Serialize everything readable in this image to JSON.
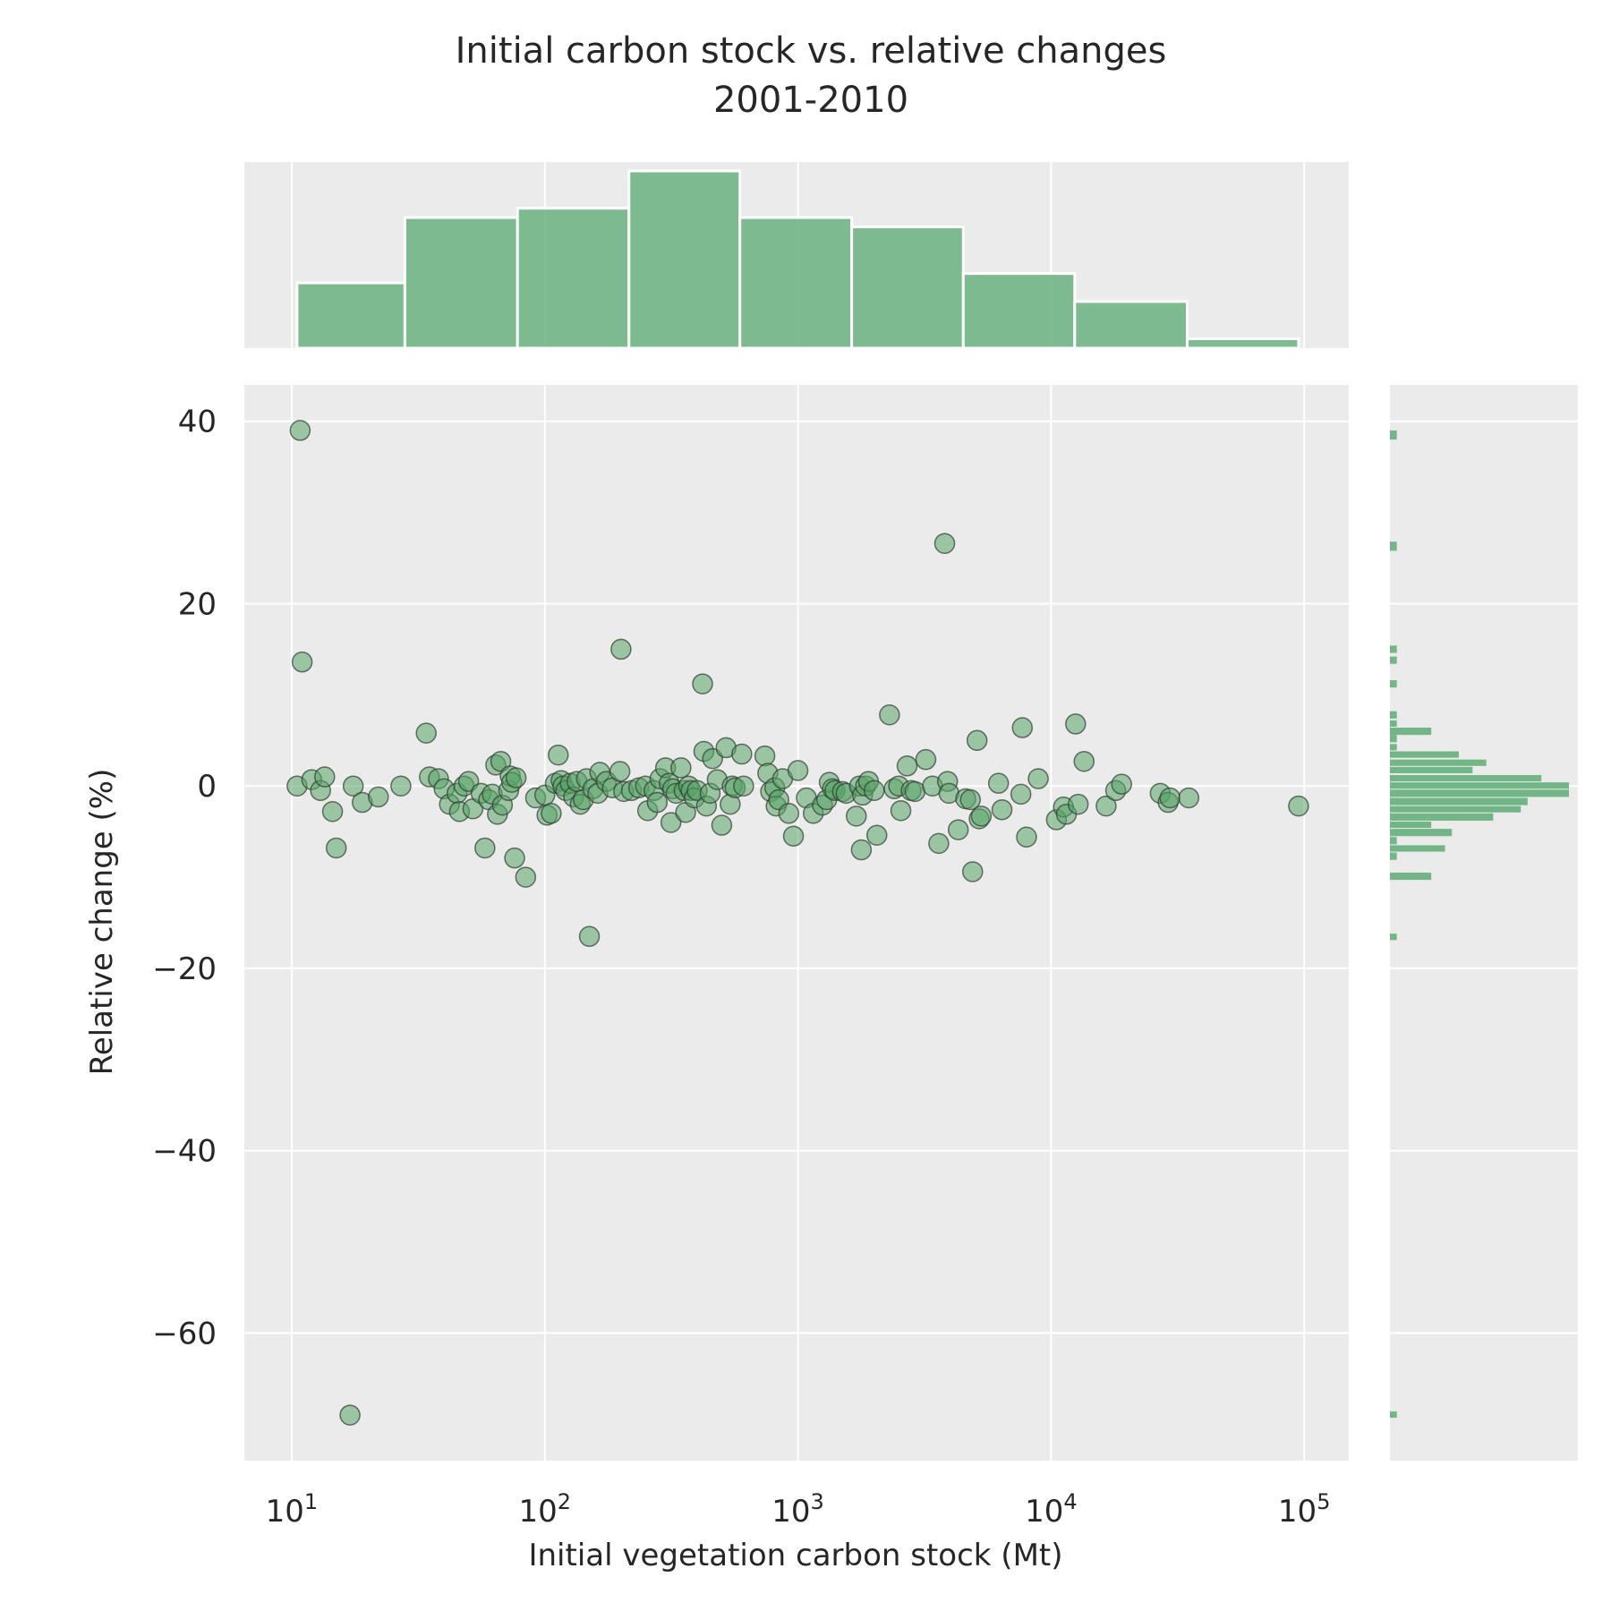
{
  "chart_data": {
    "type": "scatter",
    "title": "Initial carbon stock vs. relative changes",
    "subtitle": "2001-2010",
    "xlabel": "Initial vegetation carbon stock (Mt)",
    "ylabel": "Relative change (%)",
    "xscale": "log",
    "xlim": [
      6.5,
      150000
    ],
    "ylim": [
      -74,
      44
    ],
    "x_ticks": [
      10,
      100,
      1000,
      10000,
      100000
    ],
    "x_tick_labels": [
      {
        "base": "10",
        "exp": "1"
      },
      {
        "base": "10",
        "exp": "2"
      },
      {
        "base": "10",
        "exp": "3"
      },
      {
        "base": "10",
        "exp": "4"
      },
      {
        "base": "10",
        "exp": "5"
      }
    ],
    "y_ticks": [
      40,
      20,
      0,
      -20,
      -40,
      -60
    ],
    "y_tick_labels": [
      "40",
      "20",
      "0",
      "−20",
      "−40",
      "−60"
    ],
    "grid": true,
    "colors": {
      "marker": "#5aa468",
      "hist": "#72b586",
      "panel": "#ebebeb"
    },
    "points": [
      [
        10.5,
        0
      ],
      [
        10.8,
        39
      ],
      [
        11,
        13.6
      ],
      [
        12,
        0.7
      ],
      [
        13,
        -0.5
      ],
      [
        13.5,
        1
      ],
      [
        14.5,
        -2.8
      ],
      [
        15,
        -6.8
      ],
      [
        17,
        -69
      ],
      [
        17.5,
        0
      ],
      [
        19,
        -1.8
      ],
      [
        22,
        -1.2
      ],
      [
        27,
        0
      ],
      [
        34,
        5.8
      ],
      [
        35,
        1
      ],
      [
        38,
        0.8
      ],
      [
        40,
        -0.3
      ],
      [
        42,
        -2
      ],
      [
        45,
        -0.8
      ],
      [
        46,
        -2.8
      ],
      [
        48,
        0
      ],
      [
        50,
        0.5
      ],
      [
        52,
        -2.5
      ],
      [
        56,
        -0.8
      ],
      [
        58,
        -6.8
      ],
      [
        60,
        -1.5
      ],
      [
        62,
        -0.9
      ],
      [
        64,
        2.3
      ],
      [
        65,
        -3.1
      ],
      [
        67,
        2.7
      ],
      [
        68,
        -2.1
      ],
      [
        72,
        -0.5
      ],
      [
        73,
        1.1
      ],
      [
        74,
        0.4
      ],
      [
        76,
        -7.9
      ],
      [
        77,
        0.9
      ],
      [
        84,
        -10
      ],
      [
        92,
        -1.3
      ],
      [
        100,
        -1
      ],
      [
        102,
        -3.2
      ],
      [
        106,
        -3
      ],
      [
        110,
        0.3
      ],
      [
        113,
        3.4
      ],
      [
        116,
        0.6
      ],
      [
        118,
        0
      ],
      [
        121,
        -0.5
      ],
      [
        126,
        0.3
      ],
      [
        130,
        -1.2
      ],
      [
        134,
        0.5
      ],
      [
        138,
        -2
      ],
      [
        142,
        -1.5
      ],
      [
        146,
        0.8
      ],
      [
        150,
        -16.5
      ],
      [
        155,
        -0.3
      ],
      [
        162,
        -0.8
      ],
      [
        165,
        1.5
      ],
      [
        175,
        0.5
      ],
      [
        185,
        -0.2
      ],
      [
        198,
        1.6
      ],
      [
        200,
        15
      ],
      [
        205,
        -0.6
      ],
      [
        220,
        -0.5
      ],
      [
        235,
        -0.2
      ],
      [
        250,
        0
      ],
      [
        255,
        -2.7
      ],
      [
        270,
        -0.5
      ],
      [
        278,
        -1.8
      ],
      [
        285,
        0.8
      ],
      [
        300,
        2
      ],
      [
        310,
        0.3
      ],
      [
        315,
        -4
      ],
      [
        320,
        -0.3
      ],
      [
        330,
        -0.8
      ],
      [
        345,
        2
      ],
      [
        355,
        -0.5
      ],
      [
        360,
        -2.9
      ],
      [
        370,
        0
      ],
      [
        378,
        -0.5
      ],
      [
        390,
        -1.3
      ],
      [
        400,
        -0.5
      ],
      [
        420,
        11.2
      ],
      [
        425,
        3.8
      ],
      [
        435,
        -2.2
      ],
      [
        450,
        -0.8
      ],
      [
        460,
        3
      ],
      [
        480,
        0.7
      ],
      [
        500,
        -4.3
      ],
      [
        520,
        4.2
      ],
      [
        540,
        -2
      ],
      [
        550,
        0
      ],
      [
        565,
        -0.2
      ],
      [
        600,
        3.5
      ],
      [
        610,
        0
      ],
      [
        740,
        3.3
      ],
      [
        760,
        1.4
      ],
      [
        780,
        -0.6
      ],
      [
        810,
        -0.2
      ],
      [
        820,
        -2.2
      ],
      [
        840,
        -1.5
      ],
      [
        870,
        0.8
      ],
      [
        920,
        -3
      ],
      [
        960,
        -5.5
      ],
      [
        1000,
        1.7
      ],
      [
        1080,
        -1.3
      ],
      [
        1150,
        -3
      ],
      [
        1250,
        -2.1
      ],
      [
        1300,
        -1.5
      ],
      [
        1330,
        0.4
      ],
      [
        1370,
        -0.3
      ],
      [
        1400,
        -0.5
      ],
      [
        1500,
        -0.6
      ],
      [
        1550,
        -0.8
      ],
      [
        1700,
        -3.3
      ],
      [
        1750,
        0
      ],
      [
        1780,
        -7
      ],
      [
        1800,
        -1
      ],
      [
        1850,
        0
      ],
      [
        1900,
        0.5
      ],
      [
        2000,
        -0.5
      ],
      [
        2050,
        -5.4
      ],
      [
        2300,
        7.8
      ],
      [
        2400,
        -0.3
      ],
      [
        2500,
        0
      ],
      [
        2550,
        -2.7
      ],
      [
        2700,
        2.2
      ],
      [
        2800,
        -0.5
      ],
      [
        2900,
        -0.6
      ],
      [
        3200,
        2.9
      ],
      [
        3400,
        0
      ],
      [
        3600,
        -6.3
      ],
      [
        3800,
        26.6
      ],
      [
        3900,
        0.5
      ],
      [
        3950,
        -0.8
      ],
      [
        4300,
        -4.8
      ],
      [
        4600,
        -1.4
      ],
      [
        4800,
        -1.5
      ],
      [
        4900,
        -9.4
      ],
      [
        5100,
        5
      ],
      [
        5200,
        -3.6
      ],
      [
        5300,
        -3.3
      ],
      [
        6200,
        0.3
      ],
      [
        6400,
        -2.6
      ],
      [
        7600,
        -0.9
      ],
      [
        7700,
        6.4
      ],
      [
        8000,
        -5.6
      ],
      [
        8900,
        0.8
      ],
      [
        10500,
        -3.7
      ],
      [
        11200,
        -2.3
      ],
      [
        11500,
        -3.1
      ],
      [
        12500,
        6.8
      ],
      [
        12800,
        -2
      ],
      [
        13500,
        2.7
      ],
      [
        16500,
        -2.2
      ],
      [
        18000,
        -0.5
      ],
      [
        19000,
        0.2
      ],
      [
        27000,
        -0.8
      ],
      [
        29000,
        -1.8
      ],
      [
        29500,
        -1.3
      ],
      [
        35000,
        -1.3
      ],
      [
        95000,
        -2.2
      ]
    ],
    "x_hist": [
      {
        "x0": 10.5,
        "x1": 28,
        "count": 7
      },
      {
        "x0": 28,
        "x1": 78,
        "count": 14
      },
      {
        "x0": 78,
        "x1": 215,
        "count": 15
      },
      {
        "x0": 215,
        "x1": 590,
        "count": 19
      },
      {
        "x0": 590,
        "x1": 1630,
        "count": 14
      },
      {
        "x0": 1630,
        "x1": 4500,
        "count": 13
      },
      {
        "x0": 4500,
        "x1": 12400,
        "count": 8
      },
      {
        "x0": 12400,
        "x1": 34500,
        "count": 5
      },
      {
        "x0": 34500,
        "x1": 95000,
        "count": 1
      }
    ],
    "y_hist": [
      {
        "y0": 38,
        "y1": 39,
        "count": 1
      },
      {
        "y0": 25.8,
        "y1": 26.8,
        "count": 1
      },
      {
        "y0": 14.6,
        "y1": 15.4,
        "count": 1
      },
      {
        "y0": 13.4,
        "y1": 14.2,
        "count": 1
      },
      {
        "y0": 10.8,
        "y1": 11.6,
        "count": 1
      },
      {
        "y0": 7.4,
        "y1": 8.2,
        "count": 1
      },
      {
        "y0": 6.5,
        "y1": 7.2,
        "count": 1
      },
      {
        "y0": 5.6,
        "y1": 6.4,
        "count": 6
      },
      {
        "y0": 4.8,
        "y1": 5.6,
        "count": 1
      },
      {
        "y0": 3.9,
        "y1": 4.6,
        "count": 1
      },
      {
        "y0": 3.1,
        "y1": 3.8,
        "count": 10
      },
      {
        "y0": 2.2,
        "y1": 2.9,
        "count": 14
      },
      {
        "y0": 1.4,
        "y1": 2.1,
        "count": 12
      },
      {
        "y0": 0.5,
        "y1": 1.2,
        "count": 22
      },
      {
        "y0": -0.3,
        "y1": 0.4,
        "count": 26
      },
      {
        "y0": -1.2,
        "y1": -0.4,
        "count": 26
      },
      {
        "y0": -2.1,
        "y1": -1.3,
        "count": 20
      },
      {
        "y0": -2.9,
        "y1": -2.2,
        "count": 19
      },
      {
        "y0": -3.8,
        "y1": -3.0,
        "count": 15
      },
      {
        "y0": -4.6,
        "y1": -3.9,
        "count": 6
      },
      {
        "y0": -5.5,
        "y1": -4.7,
        "count": 9
      },
      {
        "y0": -6.4,
        "y1": -5.6,
        "count": 1
      },
      {
        "y0": -7.2,
        "y1": -6.5,
        "count": 8
      },
      {
        "y0": -8.1,
        "y1": -7.3,
        "count": 1
      },
      {
        "y0": -10.3,
        "y1": -9.5,
        "count": 6
      },
      {
        "y0": -16.9,
        "y1": -16.2,
        "count": 1
      },
      {
        "y0": -69.3,
        "y1": -68.6,
        "count": 1
      }
    ]
  }
}
